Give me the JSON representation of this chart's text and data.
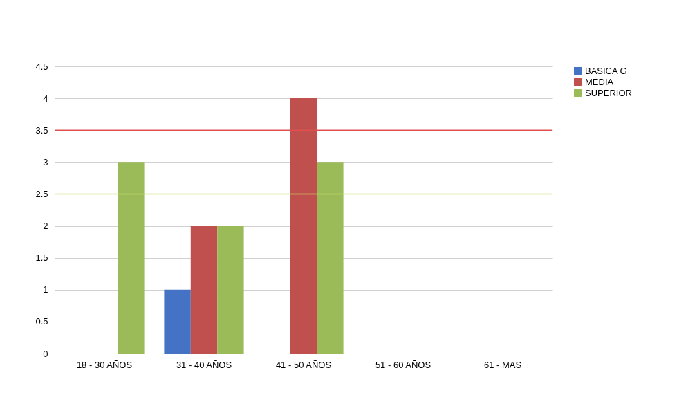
{
  "chart_data": {
    "type": "bar",
    "categories": [
      "18 - 30 AÑOS",
      "31 - 40 AÑOS",
      "41 - 50 AÑOS",
      "51 - 60 AÑOS",
      "61 - MAS"
    ],
    "series": [
      {
        "name": "BASICA G",
        "color": "#4472c4",
        "values": [
          0,
          1,
          0,
          0,
          0
        ]
      },
      {
        "name": "MEDIA",
        "color": "#c0504d",
        "values": [
          0,
          2,
          4,
          0,
          0
        ]
      },
      {
        "name": "SUPERIOR",
        "color": "#9bbb59",
        "values": [
          3,
          2,
          3,
          0,
          0
        ]
      }
    ],
    "ylim": [
      0,
      4.5
    ],
    "yticks": [
      0,
      0.5,
      1,
      1.5,
      2,
      2.5,
      3,
      3.5,
      4,
      4.5
    ],
    "grid": "y",
    "legend": "right",
    "ref_lines": [
      {
        "axis": "y",
        "value": 3.5,
        "color": "#e05050"
      },
      {
        "axis": "y",
        "value": 2.5,
        "color": "#c8e070"
      }
    ]
  }
}
